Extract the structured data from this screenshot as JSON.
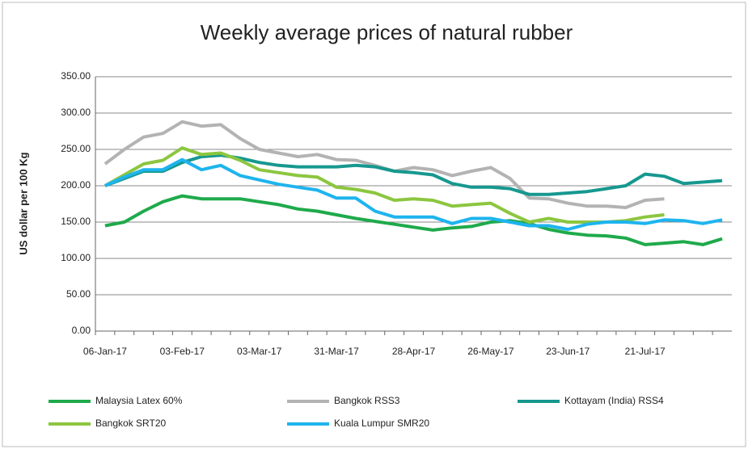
{
  "chart_data": {
    "type": "line",
    "title": "Weekly average prices of natural rubber",
    "y_label": "US dollar per 100 Kg",
    "categories": [
      "06-Jan-17",
      null,
      null,
      null,
      "03-Feb-17",
      null,
      null,
      null,
      "03-Mar-17",
      null,
      null,
      null,
      "31-Mar-17",
      null,
      null,
      null,
      "28-Apr-17",
      null,
      null,
      null,
      "26-May-17",
      null,
      null,
      null,
      "23-Jun-17",
      null,
      null,
      null,
      "21-Jul-17",
      null,
      null,
      null,
      null
    ],
    "ylim": [
      0,
      350
    ],
    "yticks": [
      {
        "value": 0,
        "label": "0.00"
      },
      {
        "value": 50,
        "label": "50.00"
      },
      {
        "value": 100,
        "label": "100.00"
      },
      {
        "value": 150,
        "label": "150.00"
      },
      {
        "value": 200,
        "label": "200.00"
      },
      {
        "value": 250,
        "label": "250.00"
      },
      {
        "value": 300,
        "label": "300.00"
      },
      {
        "value": 350,
        "label": "350.00"
      }
    ],
    "grid": true,
    "legend": "bottom",
    "series": [
      {
        "name": "Malaysia Latex 60%",
        "color": "#1faa4b",
        "values": [
          145,
          150,
          165,
          178,
          186,
          182,
          182,
          182,
          178,
          174,
          168,
          165,
          160,
          155,
          151,
          147,
          143,
          139,
          142,
          144,
          150,
          152,
          148,
          140,
          135,
          132,
          131,
          128,
          119,
          121,
          123,
          119,
          127
        ]
      },
      {
        "name": "Bangkok RSS3",
        "color": "#b3b3b3",
        "values": [
          230,
          250,
          267,
          272,
          288,
          282,
          284,
          265,
          250,
          245,
          240,
          243,
          236,
          235,
          228,
          220,
          225,
          222,
          214,
          220,
          225,
          210,
          183,
          182,
          176,
          172,
          172,
          170,
          180,
          182,
          null,
          null,
          null
        ]
      },
      {
        "name": "Kottayam (India) RSS4",
        "color": "#16988f",
        "values": [
          200,
          210,
          220,
          220,
          232,
          240,
          242,
          238,
          232,
          228,
          226,
          226,
          226,
          228,
          226,
          220,
          218,
          215,
          203,
          198,
          198,
          196,
          188,
          188,
          190,
          192,
          196,
          200,
          216,
          213,
          203,
          205,
          207
        ]
      },
      {
        "name": "Bangkok SRT20",
        "color": "#8cc63f",
        "values": [
          200,
          215,
          230,
          235,
          252,
          243,
          245,
          235,
          222,
          218,
          214,
          212,
          198,
          195,
          190,
          180,
          182,
          180,
          172,
          174,
          176,
          162,
          150,
          155,
          150,
          150,
          150,
          152,
          157,
          160,
          null,
          null,
          null
        ]
      },
      {
        "name": "Kuala Lumpur SMR20",
        "color": "#1eb4ee",
        "values": [
          200,
          212,
          222,
          222,
          236,
          222,
          228,
          214,
          208,
          202,
          198,
          194,
          183,
          183,
          165,
          157,
          157,
          157,
          148,
          155,
          155,
          150,
          145,
          145,
          140,
          147,
          150,
          150,
          148,
          153,
          152,
          148,
          153
        ]
      }
    ]
  }
}
